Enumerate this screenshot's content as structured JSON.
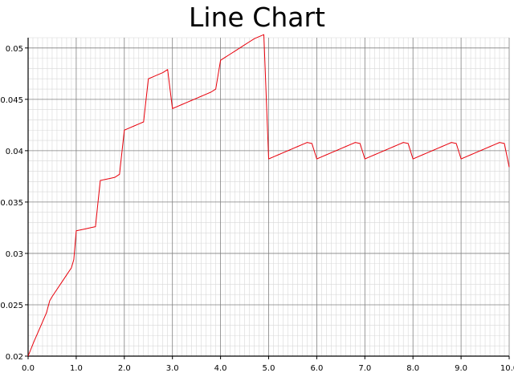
{
  "chart_data": {
    "type": "line",
    "title": "Line Chart",
    "xlabel": "",
    "ylabel": "",
    "xlim": [
      0.0,
      10.0
    ],
    "ylim": [
      0.02,
      0.051
    ],
    "x_ticks": [
      "0.0",
      "1.0",
      "2.0",
      "3.0",
      "4.0",
      "5.0",
      "6.0",
      "7.0",
      "8.0",
      "9.0",
      "10.0"
    ],
    "y_ticks": [
      "0.02",
      "0.025",
      "0.03",
      "0.035",
      "0.04",
      "0.045",
      "0.05"
    ],
    "grid": true,
    "legend": "none",
    "colors": {
      "line": "#e8000b",
      "major_grid": "#808080",
      "minor_grid": "#d8d8d8",
      "axis": "#000000"
    },
    "series": [
      {
        "x": [
          0.0,
          0.12,
          0.25,
          0.38,
          0.45,
          0.5,
          0.6,
          0.7,
          0.8,
          0.9,
          0.95,
          1.0,
          1.1,
          1.2,
          1.3,
          1.4,
          1.5,
          1.6,
          1.7,
          1.8,
          1.9,
          2.0,
          2.1,
          2.2,
          2.3,
          2.4,
          2.5,
          2.6,
          2.7,
          2.8,
          2.9,
          3.0,
          3.1,
          3.2,
          3.3,
          3.4,
          3.5,
          3.6,
          3.7,
          3.8,
          3.9,
          4.0,
          4.1,
          4.2,
          4.3,
          4.4,
          4.5,
          4.6,
          4.7,
          4.8,
          4.9,
          5.0,
          5.1,
          5.2,
          5.3,
          5.4,
          5.5,
          5.6,
          5.7,
          5.8,
          5.9,
          6.0,
          6.1,
          6.2,
          6.3,
          6.4,
          6.5,
          6.6,
          6.7,
          6.8,
          6.9,
          7.0,
          7.1,
          7.2,
          7.3,
          7.4,
          7.5,
          7.6,
          7.7,
          7.8,
          7.9,
          8.0,
          8.1,
          8.2,
          8.3,
          8.4,
          8.5,
          8.6,
          8.7,
          8.8,
          8.9,
          9.0,
          9.1,
          9.2,
          9.3,
          9.4,
          9.5,
          9.6,
          9.7,
          9.8,
          9.9,
          10.0
        ],
        "y": [
          0.02,
          0.0214,
          0.0228,
          0.0242,
          0.0254,
          0.0258,
          0.0265,
          0.0272,
          0.0279,
          0.0286,
          0.0294,
          0.0322,
          0.0323,
          0.0324,
          0.0325,
          0.0326,
          0.0371,
          0.0372,
          0.0373,
          0.0374,
          0.0377,
          0.042,
          0.0422,
          0.0424,
          0.0426,
          0.0428,
          0.047,
          0.0472,
          0.0474,
          0.0476,
          0.0479,
          0.0441,
          0.0443,
          0.0445,
          0.0447,
          0.0449,
          0.0451,
          0.0453,
          0.0455,
          0.0457,
          0.046,
          0.0488,
          0.0491,
          0.0494,
          0.0497,
          0.05,
          0.0503,
          0.0506,
          0.0509,
          0.0511,
          0.0513,
          0.0392,
          0.0394,
          0.0396,
          0.0398,
          0.04,
          0.0402,
          0.0404,
          0.0406,
          0.0408,
          0.0407,
          0.0392,
          0.0394,
          0.0396,
          0.0398,
          0.04,
          0.0402,
          0.0404,
          0.0406,
          0.0408,
          0.0407,
          0.0392,
          0.0394,
          0.0396,
          0.0398,
          0.04,
          0.0402,
          0.0404,
          0.0406,
          0.0408,
          0.0407,
          0.0392,
          0.0394,
          0.0396,
          0.0398,
          0.04,
          0.0402,
          0.0404,
          0.0406,
          0.0408,
          0.0407,
          0.0392,
          0.0394,
          0.0396,
          0.0398,
          0.04,
          0.0402,
          0.0404,
          0.0406,
          0.0408,
          0.0407,
          0.0384
        ]
      }
    ]
  }
}
